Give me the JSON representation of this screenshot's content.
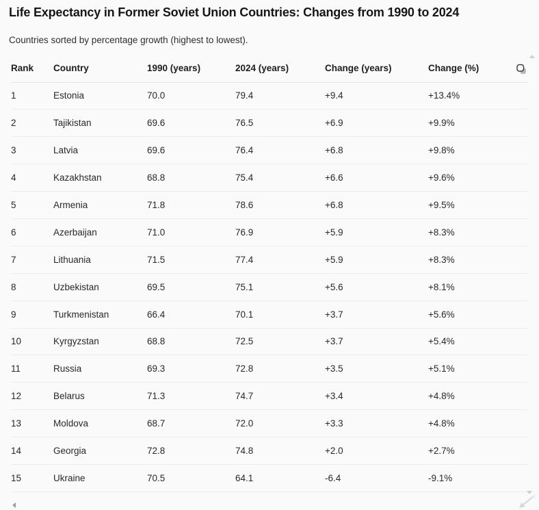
{
  "header": {
    "title": "Life Expectancy in Former Soviet Union Countries: Changes from 1990 to 2024",
    "subtitle": "Countries sorted by percentage growth (highest to lowest)."
  },
  "table": {
    "columns": [
      "Rank",
      "Country",
      "1990 (years)",
      "2024 (years)",
      "Change (years)",
      "Change (%)"
    ],
    "rows": [
      [
        "1",
        "Estonia",
        "70.0",
        "79.4",
        "+9.4",
        "+13.4%"
      ],
      [
        "2",
        "Tajikistan",
        "69.6",
        "76.5",
        "+6.9",
        "+9.9%"
      ],
      [
        "3",
        "Latvia",
        "69.6",
        "76.4",
        "+6.8",
        "+9.8%"
      ],
      [
        "4",
        "Kazakhstan",
        "68.8",
        "75.4",
        "+6.6",
        "+9.6%"
      ],
      [
        "5",
        "Armenia",
        "71.8",
        "78.6",
        "+6.8",
        "+9.5%"
      ],
      [
        "6",
        "Azerbaijan",
        "71.0",
        "76.9",
        "+5.9",
        "+8.3%"
      ],
      [
        "7",
        "Lithuania",
        "71.5",
        "77.4",
        "+5.9",
        "+8.3%"
      ],
      [
        "8",
        "Uzbekistan",
        "69.5",
        "75.1",
        "+5.6",
        "+8.1%"
      ],
      [
        "9",
        "Turkmenistan",
        "66.4",
        "70.1",
        "+3.7",
        "+5.6%"
      ],
      [
        "10",
        "Kyrgyzstan",
        "68.8",
        "72.5",
        "+3.7",
        "+5.4%"
      ],
      [
        "11",
        "Russia",
        "69.3",
        "72.8",
        "+3.5",
        "+5.1%"
      ],
      [
        "12",
        "Belarus",
        "71.3",
        "74.7",
        "+3.4",
        "+4.8%"
      ],
      [
        "13",
        "Moldova",
        "68.7",
        "72.0",
        "+3.3",
        "+4.8%"
      ],
      [
        "14",
        "Georgia",
        "72.8",
        "74.8",
        "+2.0",
        "+2.7%"
      ],
      [
        "15",
        "Ukraine",
        "70.5",
        "64.1",
        "-6.4",
        "-9.1%"
      ]
    ]
  },
  "icons": {
    "copy": "copy-icon",
    "scroll_up": "triangle-up-icon",
    "scroll_down": "triangle-down-icon",
    "scroll_left": "triangle-left-icon",
    "resize": "resize-grip-icon"
  },
  "colors": {
    "background": "#fafafa",
    "title_text": "#161616",
    "body_text": "#282828",
    "header_border": "#e4e4e4",
    "row_border": "#ededed",
    "icon_dark": "#3f3f3f",
    "icon_light": "#cfcfcf"
  }
}
